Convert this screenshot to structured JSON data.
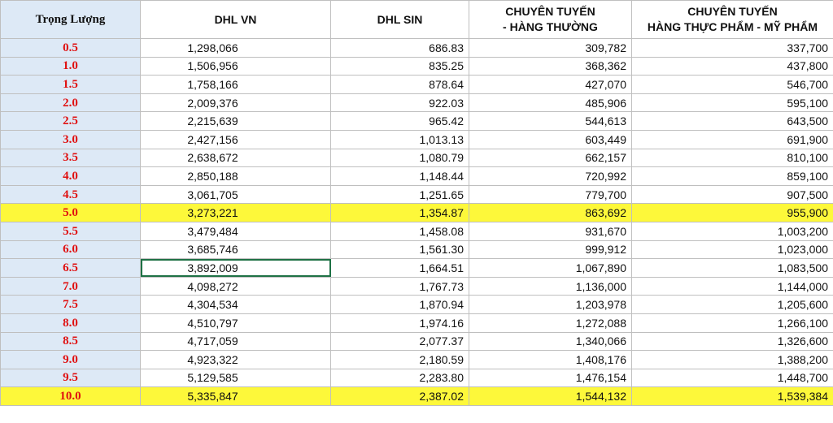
{
  "headers": {
    "weight": "Trọng Lượng",
    "dhl_vn": "DHL VN",
    "dhl_sin": "DHL SIN",
    "route_regular_1": "CHUYÊN TUYẾN",
    "route_regular_2": "- HÀNG THƯỜNG",
    "route_food_1": "CHUYÊN TUYẾN",
    "route_food_2": "HÀNG THỰC PHẨM - MỸ PHẨM"
  },
  "rows": [
    {
      "weight": "0.5",
      "dhl_vn": "1,298,066",
      "dhl_sin": "686.83",
      "route_regular": "309,782",
      "route_food": "337,700",
      "highlight": false
    },
    {
      "weight": "1.0",
      "dhl_vn": "1,506,956",
      "dhl_sin": "835.25",
      "route_regular": "368,362",
      "route_food": "437,800",
      "highlight": false
    },
    {
      "weight": "1.5",
      "dhl_vn": "1,758,166",
      "dhl_sin": "878.64",
      "route_regular": "427,070",
      "route_food": "546,700",
      "highlight": false
    },
    {
      "weight": "2.0",
      "dhl_vn": "2,009,376",
      "dhl_sin": "922.03",
      "route_regular": "485,906",
      "route_food": "595,100",
      "highlight": false
    },
    {
      "weight": "2.5",
      "dhl_vn": "2,215,639",
      "dhl_sin": "965.42",
      "route_regular": "544,613",
      "route_food": "643,500",
      "highlight": false
    },
    {
      "weight": "3.0",
      "dhl_vn": "2,427,156",
      "dhl_sin": "1,013.13",
      "route_regular": "603,449",
      "route_food": "691,900",
      "highlight": false
    },
    {
      "weight": "3.5",
      "dhl_vn": "2,638,672",
      "dhl_sin": "1,080.79",
      "route_regular": "662,157",
      "route_food": "810,100",
      "highlight": false
    },
    {
      "weight": "4.0",
      "dhl_vn": "2,850,188",
      "dhl_sin": "1,148.44",
      "route_regular": "720,992",
      "route_food": "859,100",
      "highlight": false
    },
    {
      "weight": "4.5",
      "dhl_vn": "3,061,705",
      "dhl_sin": "1,251.65",
      "route_regular": "779,700",
      "route_food": "907,500",
      "highlight": false
    },
    {
      "weight": "5.0",
      "dhl_vn": "3,273,221",
      "dhl_sin": "1,354.87",
      "route_regular": "863,692",
      "route_food": "955,900",
      "highlight": true
    },
    {
      "weight": "5.5",
      "dhl_vn": "3,479,484",
      "dhl_sin": "1,458.08",
      "route_regular": "931,670",
      "route_food": "1,003,200",
      "highlight": false
    },
    {
      "weight": "6.0",
      "dhl_vn": "3,685,746",
      "dhl_sin": "1,561.30",
      "route_regular": "999,912",
      "route_food": "1,023,000",
      "highlight": false
    },
    {
      "weight": "6.5",
      "dhl_vn": "3,892,009",
      "dhl_sin": "1,664.51",
      "route_regular": "1,067,890",
      "route_food": "1,083,500",
      "highlight": false,
      "selected": true
    },
    {
      "weight": "7.0",
      "dhl_vn": "4,098,272",
      "dhl_sin": "1,767.73",
      "route_regular": "1,136,000",
      "route_food": "1,144,000",
      "highlight": false
    },
    {
      "weight": "7.5",
      "dhl_vn": "4,304,534",
      "dhl_sin": "1,870.94",
      "route_regular": "1,203,978",
      "route_food": "1,205,600",
      "highlight": false
    },
    {
      "weight": "8.0",
      "dhl_vn": "4,510,797",
      "dhl_sin": "1,974.16",
      "route_regular": "1,272,088",
      "route_food": "1,266,100",
      "highlight": false
    },
    {
      "weight": "8.5",
      "dhl_vn": "4,717,059",
      "dhl_sin": "2,077.37",
      "route_regular": "1,340,066",
      "route_food": "1,326,600",
      "highlight": false
    },
    {
      "weight": "9.0",
      "dhl_vn": "4,923,322",
      "dhl_sin": "2,180.59",
      "route_regular": "1,408,176",
      "route_food": "1,388,200",
      "highlight": false
    },
    {
      "weight": "9.5",
      "dhl_vn": "5,129,585",
      "dhl_sin": "2,283.80",
      "route_regular": "1,476,154",
      "route_food": "1,448,700",
      "highlight": false
    },
    {
      "weight": "10.0",
      "dhl_vn": "5,335,847",
      "dhl_sin": "2,387.02",
      "route_regular": "1,544,132",
      "route_food": "1,539,384",
      "highlight": true
    }
  ],
  "colors": {
    "weight_text": "#e01010",
    "weight_bg": "#dde9f6",
    "highlight_bg": "#fdf83a",
    "selection_border": "#1e7145"
  }
}
